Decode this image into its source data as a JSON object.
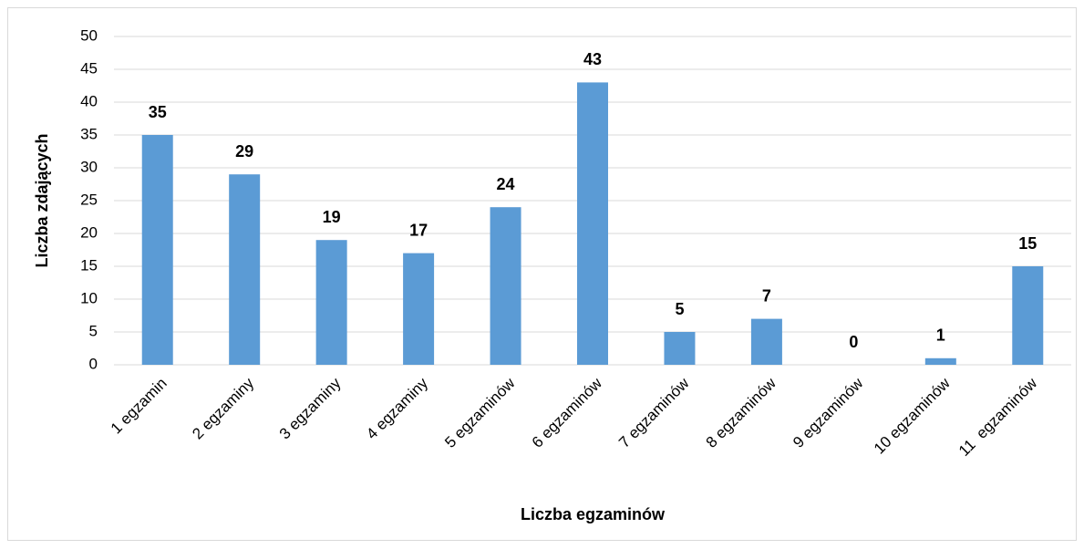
{
  "chart_data": {
    "type": "bar",
    "categories": [
      "1 egzamin",
      "2 egzaminy",
      "3 egzaminy",
      "4 egzaminy",
      "5 egzaminów",
      "6 egzaminów",
      "7 egzaminów",
      "8 egzaminów",
      "9 egzaminów",
      "10 egzaminów",
      "11  egzaminów"
    ],
    "values": [
      35,
      29,
      19,
      17,
      24,
      43,
      5,
      7,
      0,
      1,
      15
    ],
    "color": "#5b9bd5",
    "xlabel": "Liczba egzaminów",
    "ylabel": "Liczba zdających",
    "ylim": [
      0,
      50
    ],
    "yticks": [
      0,
      5,
      10,
      15,
      20,
      25,
      30,
      35,
      40,
      45,
      50
    ],
    "grid": true
  }
}
